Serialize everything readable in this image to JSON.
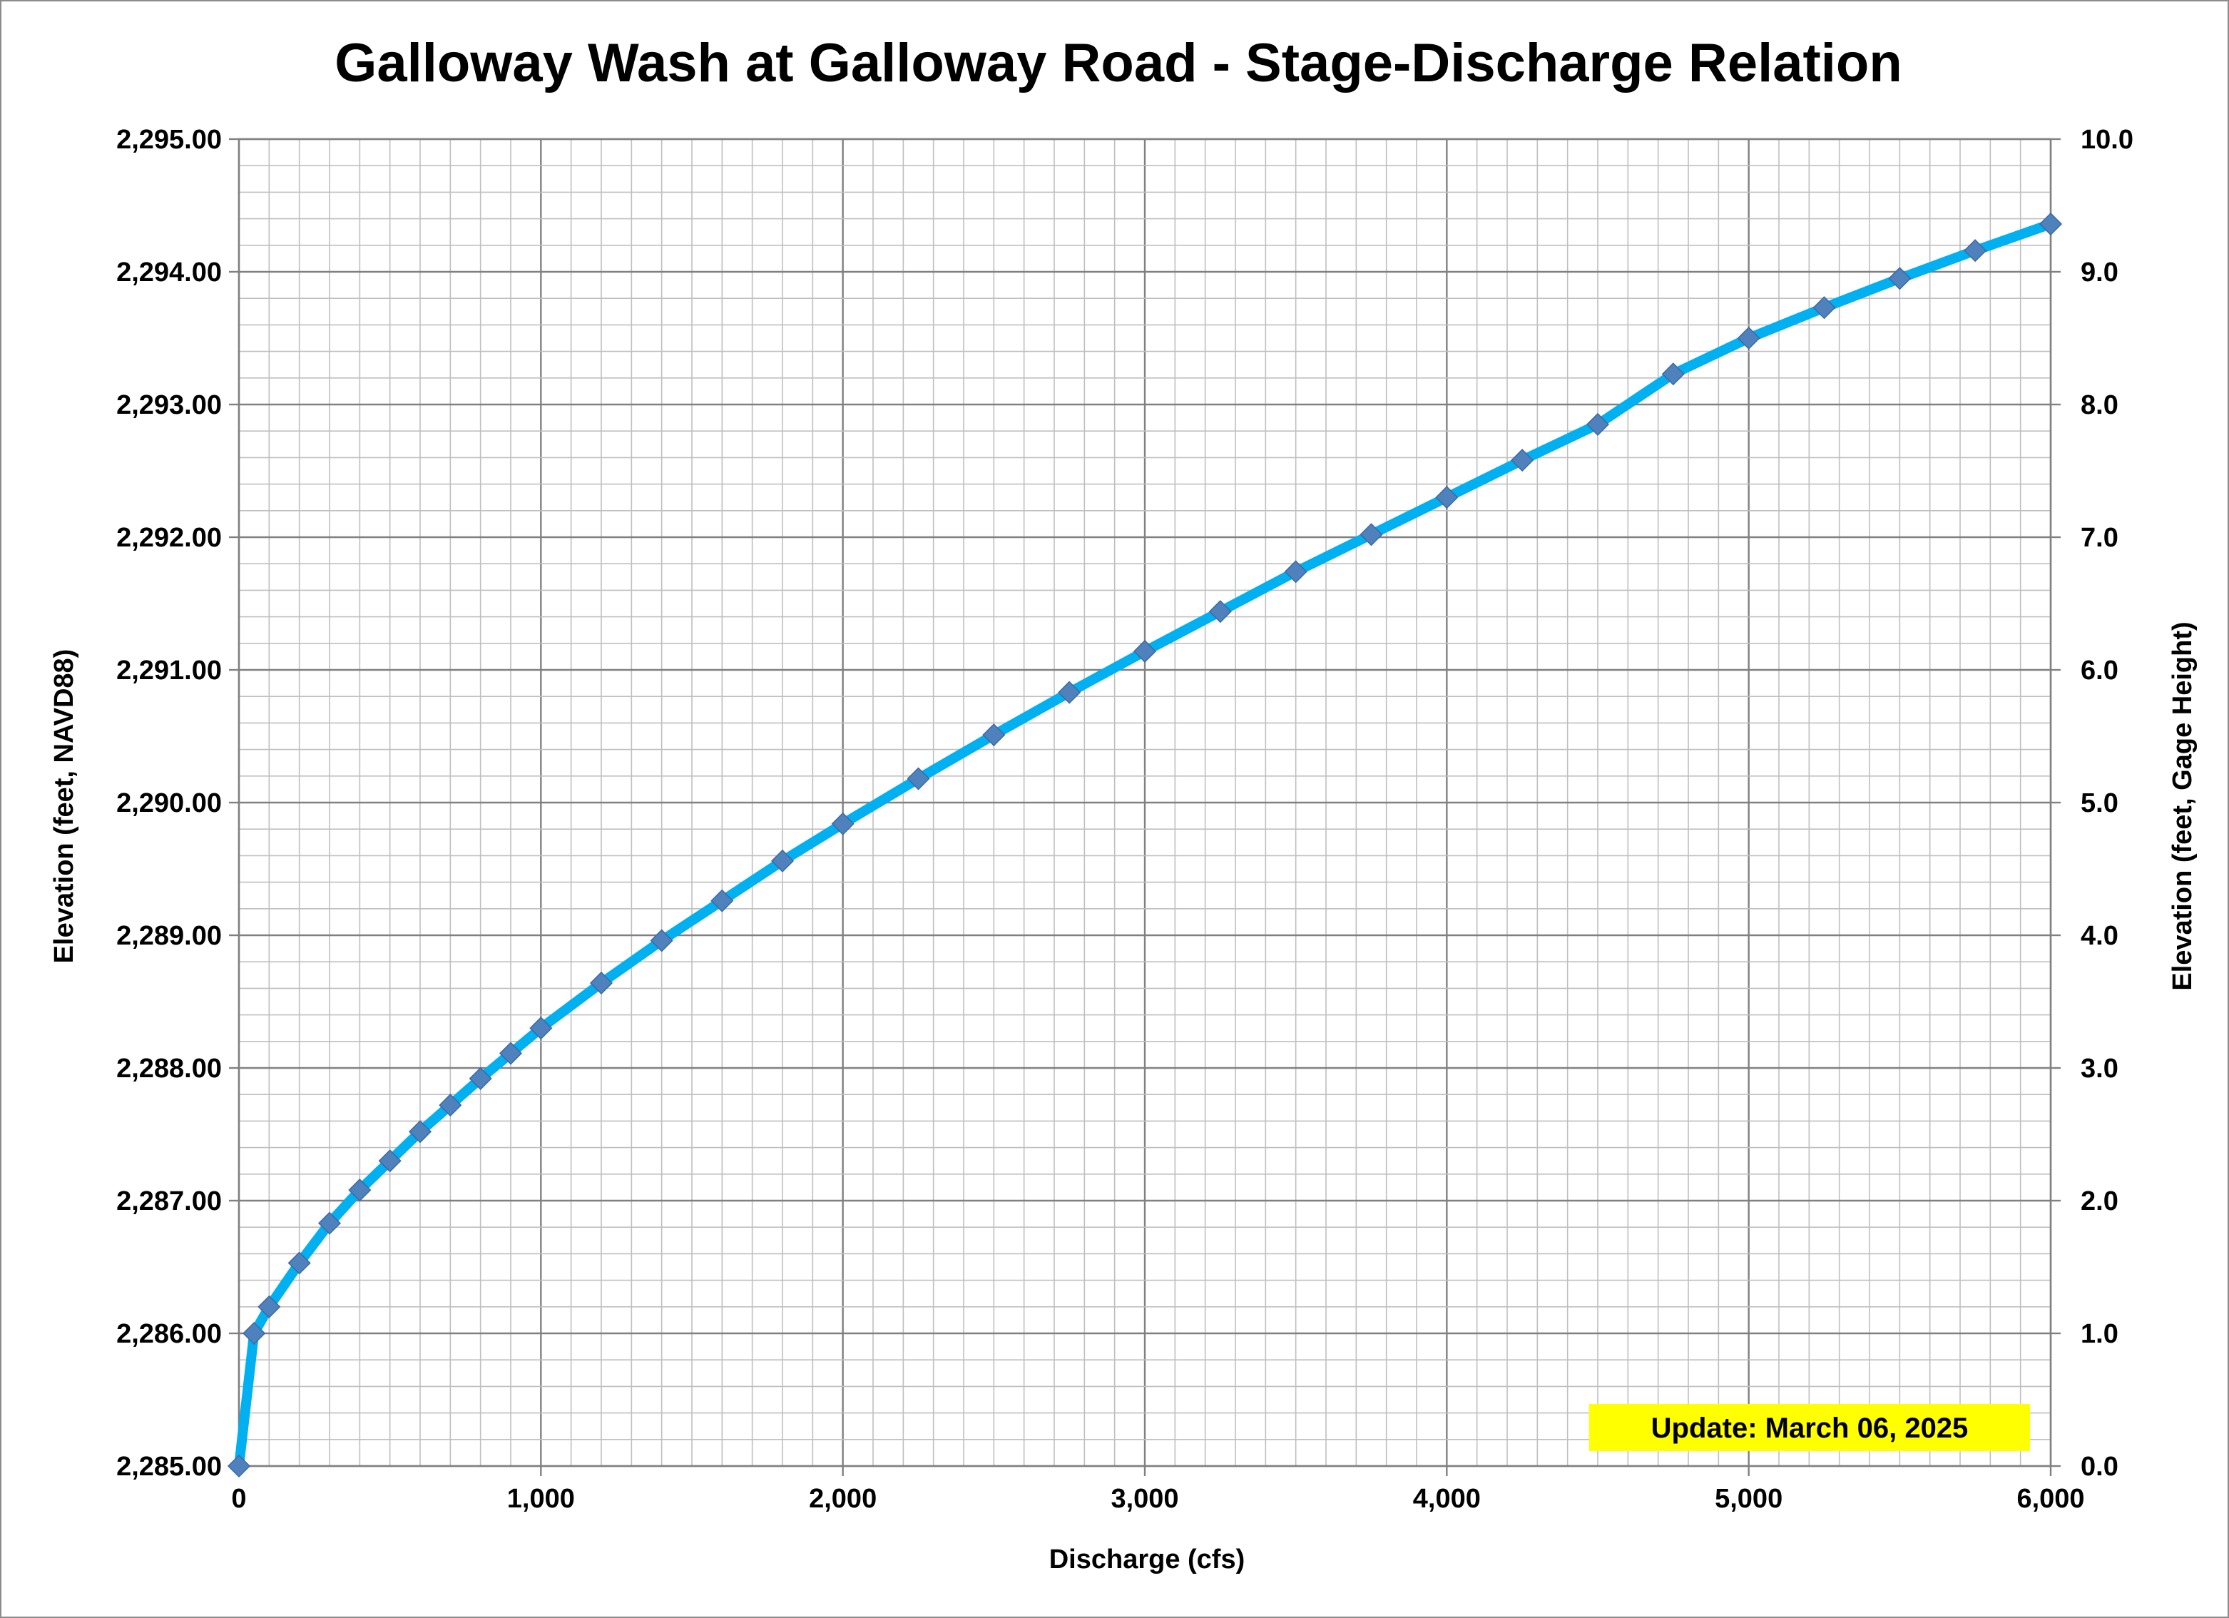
{
  "chart_data": {
    "type": "line",
    "title": "Galloway Wash at Galloway Road - Stage-Discharge Relation",
    "xlabel": "Discharge (cfs)",
    "ylabel": "Elevation (feet, NAVD88)",
    "y2label": "Elevation (feet, Gage Height)",
    "xlim": [
      0,
      6000
    ],
    "ylim": [
      2285.0,
      2295.0
    ],
    "y2lim": [
      0.0,
      10.0
    ],
    "x_ticks": [
      "0",
      "1,000",
      "2,000",
      "3,000",
      "4,000",
      "5,000",
      "6,000"
    ],
    "y_ticks": [
      "2,285.00",
      "2,286.00",
      "2,287.00",
      "2,288.00",
      "2,289.00",
      "2,290.00",
      "2,291.00",
      "2,292.00",
      "2,293.00",
      "2,294.00",
      "2,295.00"
    ],
    "y2_ticks": [
      "0.0",
      "1.0",
      "2.0",
      "3.0",
      "4.0",
      "5.0",
      "6.0",
      "7.0",
      "8.0",
      "9.0",
      "10.0"
    ],
    "grid": true,
    "line_color": "#00B0F0",
    "marker_color": "#4F81BD",
    "marker": "diamond",
    "series": [
      {
        "x": [
          0,
          50,
          100,
          200,
          300,
          400,
          500,
          600,
          700,
          800,
          900,
          1000,
          1200,
          1400,
          1600,
          1800,
          2000,
          2250,
          2500,
          2750,
          3000,
          3250,
          3500,
          3750,
          4000,
          4250,
          4500,
          4750,
          5000,
          5250,
          5500,
          5750,
          6000
        ],
        "y": [
          2285.0,
          2286.0,
          2286.2,
          2286.53,
          2286.83,
          2287.08,
          2287.3,
          2287.52,
          2287.72,
          2287.92,
          2288.11,
          2288.3,
          2288.64,
          2288.96,
          2289.26,
          2289.56,
          2289.84,
          2290.18,
          2290.51,
          2290.83,
          2291.14,
          2291.44,
          2291.74,
          2292.02,
          2292.3,
          2292.58,
          2292.85,
          2293.23,
          2293.5,
          2293.73,
          2293.95,
          2294.16,
          2294.36
        ]
      }
    ],
    "annotation": {
      "text": "Update: March 06, 2025",
      "background": "#FFFF00"
    }
  }
}
